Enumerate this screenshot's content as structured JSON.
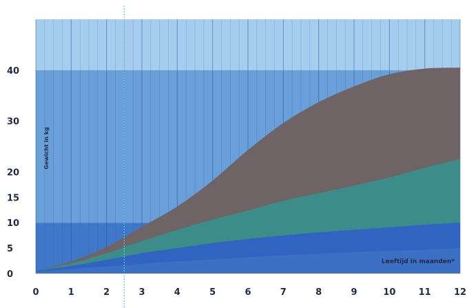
{
  "chart_data": {
    "type": "area",
    "xlabel": "Leeftijd in maanden*",
    "ylabel": "Gewicht in kg",
    "xlim": [
      0,
      12
    ],
    "ylim": [
      0,
      50
    ],
    "x_ticks": [
      "0",
      "1",
      "2",
      "3",
      "4",
      "5",
      "6",
      "7",
      "8",
      "9",
      "10",
      "11",
      "12"
    ],
    "y_ticks": [
      {
        "value": 0,
        "label": "0"
      },
      {
        "value": 5,
        "label": "5"
      },
      {
        "value": 10,
        "label": "10"
      },
      {
        "value": 15,
        "label": "15"
      },
      {
        "value": 20,
        "label": "20"
      },
      {
        "value": 30,
        "label": "30"
      },
      {
        "value": 40,
        "label": "40"
      }
    ],
    "grid": true,
    "marker_x": 2.5,
    "background_bands": [
      {
        "from": 40,
        "to": 50,
        "color": "#a6cdee"
      },
      {
        "from": 10,
        "to": 40,
        "color": "#6aa0da"
      },
      {
        "from": 0,
        "to": 10,
        "color": "#3f78c8"
      }
    ],
    "x": [
      0,
      1,
      2,
      3,
      4,
      5,
      6,
      7,
      8,
      9,
      10,
      11,
      12
    ],
    "series": [
      {
        "color": "#6e6466",
        "values": [
          0.5,
          2.4,
          5.2,
          9.2,
          13.2,
          18.3,
          24.3,
          29.6,
          33.7,
          36.8,
          39.2,
          40.3,
          40.5
        ]
      },
      {
        "color": "#3c8c8a",
        "values": [
          0.5,
          2.0,
          4.0,
          6.4,
          8.6,
          10.6,
          12.4,
          14.3,
          15.8,
          17.3,
          18.9,
          20.8,
          22.5
        ]
      },
      {
        "color": "#2f64c0",
        "values": [
          0.5,
          1.5,
          2.7,
          4.0,
          5.0,
          6.0,
          6.8,
          7.5,
          8.1,
          8.6,
          9.1,
          9.6,
          10.0
        ]
      },
      {
        "color": "#3b70c5",
        "values": [
          0.4,
          0.9,
          1.4,
          1.9,
          2.4,
          2.8,
          3.2,
          3.6,
          3.9,
          4.2,
          4.5,
          4.7,
          5.0
        ]
      }
    ]
  }
}
